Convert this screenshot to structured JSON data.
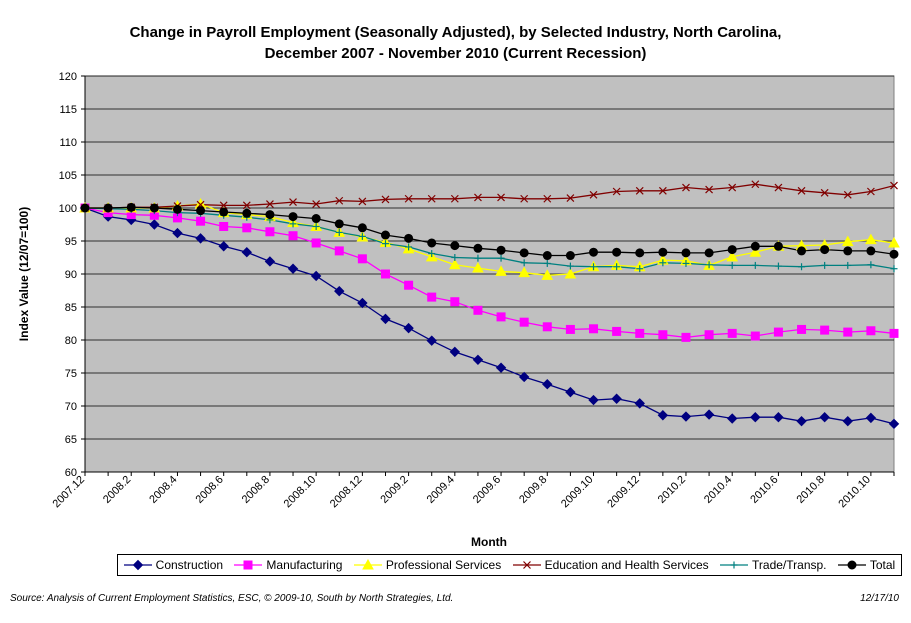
{
  "chart_data": {
    "type": "line",
    "title": [
      "Change in Payroll Employment (Seasonally Adjusted), by Selected Industry, North Carolina,",
      "December 2007 -  November 2010 (Current Recession)"
    ],
    "xlabel": "Month",
    "ylabel": "Index Value (12/07=100)",
    "ylim": [
      60,
      120
    ],
    "yticks": [
      60,
      65,
      70,
      75,
      80,
      85,
      90,
      95,
      100,
      105,
      110,
      115,
      120
    ],
    "grid": true,
    "plot_background": "#c0c0c0",
    "legend_position": "bottom",
    "categories": [
      "2007.12",
      "2008.1",
      "2008.2",
      "2008.3",
      "2008.4",
      "2008.5",
      "2008.6",
      "2008.7",
      "2008.8",
      "2008.9",
      "2008.10",
      "2008.11",
      "2008.12",
      "2009.1",
      "2009.2",
      "2009.3",
      "2009.4",
      "2009.5",
      "2009.6",
      "2009.7",
      "2009.8",
      "2009.9",
      "2009.10",
      "2009.11",
      "2009.12",
      "2010.1",
      "2010.2",
      "2010.3",
      "2010.4",
      "2010.5",
      "2010.6",
      "2010.7",
      "2010.8",
      "2010.9",
      "2010.10",
      "2010.11"
    ],
    "tick_labels": [
      "2007.12",
      "2008.2",
      "2008.4",
      "2008.6",
      "2008.8",
      "2008.10",
      "2008.12",
      "2009.2",
      "2009.4",
      "2009.6",
      "2009.8",
      "2009.10",
      "2009.12",
      "2010.2",
      "2010.4",
      "2010.6",
      "2010.8",
      "2010.10"
    ],
    "series": [
      {
        "name": "Construction",
        "color": "#000080",
        "marker": "diamond",
        "values": [
          100,
          98.7,
          98.2,
          97.5,
          96.2,
          95.4,
          94.2,
          93.3,
          91.9,
          90.8,
          89.7,
          87.4,
          85.6,
          83.2,
          81.8,
          79.9,
          78.2,
          77.0,
          75.8,
          74.4,
          73.3,
          72.1,
          70.9,
          71.1,
          70.4,
          68.6,
          68.4,
          68.7,
          68.1,
          68.3,
          68.3,
          67.7,
          68.3,
          67.7,
          68.2,
          67.3
        ]
      },
      {
        "name": "Manufacturing",
        "color": "#ff00ff",
        "marker": "square",
        "values": [
          100,
          99.3,
          99.0,
          98.9,
          98.5,
          98.0,
          97.2,
          97.0,
          96.4,
          95.8,
          94.7,
          93.5,
          92.3,
          90.0,
          88.3,
          86.5,
          85.8,
          84.5,
          83.5,
          82.7,
          82.0,
          81.6,
          81.7,
          81.3,
          81.0,
          80.8,
          80.4,
          80.8,
          81.0,
          80.6,
          81.2,
          81.6,
          81.5,
          81.2,
          81.4,
          81.0
        ]
      },
      {
        "name": "Professional Services",
        "color": "#ffff00",
        "marker": "triangle",
        "values": [
          100,
          100.0,
          100.0,
          100.0,
          100.3,
          100.6,
          99.3,
          99.0,
          98.7,
          97.8,
          97.2,
          96.3,
          95.6,
          94.8,
          93.8,
          92.6,
          91.4,
          90.9,
          90.4,
          90.2,
          89.8,
          90.0,
          91.1,
          91.3,
          91.1,
          92.1,
          92.0,
          91.3,
          92.6,
          93.3,
          94.2,
          94.3,
          94.4,
          94.9,
          95.2,
          94.7
        ]
      },
      {
        "name": "Education and Health Services",
        "color": "#800000",
        "marker": "x",
        "values": [
          100,
          100.0,
          100.1,
          100.1,
          100.3,
          100.5,
          100.4,
          100.4,
          100.6,
          100.9,
          100.6,
          101.1,
          101.0,
          101.3,
          101.4,
          101.4,
          101.4,
          101.6,
          101.6,
          101.4,
          101.4,
          101.5,
          102.0,
          102.5,
          102.6,
          102.6,
          103.1,
          102.8,
          103.1,
          103.6,
          103.1,
          102.6,
          102.3,
          102.0,
          102.5,
          103.4
        ]
      },
      {
        "name": "Trade/Transp.",
        "color": "#008080",
        "marker": "plus",
        "values": [
          100,
          99.9,
          99.8,
          99.6,
          99.3,
          99.2,
          98.9,
          98.6,
          98.2,
          97.6,
          97.2,
          96.3,
          95.7,
          94.6,
          94.1,
          93.1,
          92.5,
          92.4,
          92.4,
          91.7,
          91.6,
          91.2,
          91.1,
          91.1,
          90.8,
          91.7,
          91.6,
          91.4,
          91.3,
          91.3,
          91.2,
          91.1,
          91.3,
          91.3,
          91.4,
          90.8
        ]
      },
      {
        "name": "Total",
        "color": "#000000",
        "marker": "circle",
        "values": [
          100,
          100.0,
          100.1,
          100.0,
          99.8,
          99.6,
          99.4,
          99.2,
          99.0,
          98.7,
          98.4,
          97.6,
          97.0,
          95.9,
          95.4,
          94.7,
          94.3,
          93.9,
          93.6,
          93.2,
          92.8,
          92.8,
          93.3,
          93.3,
          93.2,
          93.3,
          93.2,
          93.2,
          93.7,
          94.2,
          94.2,
          93.5,
          93.7,
          93.5,
          93.5,
          93.0
        ]
      }
    ]
  },
  "footer": {
    "source": "Source: Analysis of Current Employment Statistics, ESC, © 2009-10, South by North Strategies, Ltd.",
    "date": "12/17/10"
  }
}
